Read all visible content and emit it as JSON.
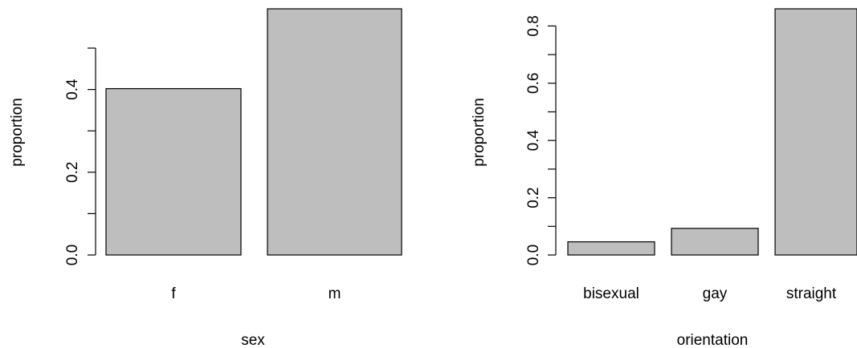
{
  "chart_data": [
    {
      "type": "bar",
      "categories": [
        "f",
        "m"
      ],
      "values": [
        0.402,
        0.598
      ],
      "xlabel": "sex",
      "ylabel": "proportion",
      "ylim": [
        0,
        0.5
      ],
      "yticks": [
        "0.0",
        "0.2",
        "0.4"
      ],
      "bar_color": "#bebebe",
      "grid": false
    },
    {
      "type": "bar",
      "categories": [
        "bisexual",
        "gay",
        "straight"
      ],
      "values": [
        0.046,
        0.093,
        0.861
      ],
      "xlabel": "orientation",
      "ylabel": "proportion",
      "ylim": [
        0,
        0.8
      ],
      "yticks": [
        "0.0",
        "0.2",
        "0.4",
        "0.6",
        "0.8"
      ],
      "bar_color": "#bebebe",
      "grid": false
    }
  ]
}
